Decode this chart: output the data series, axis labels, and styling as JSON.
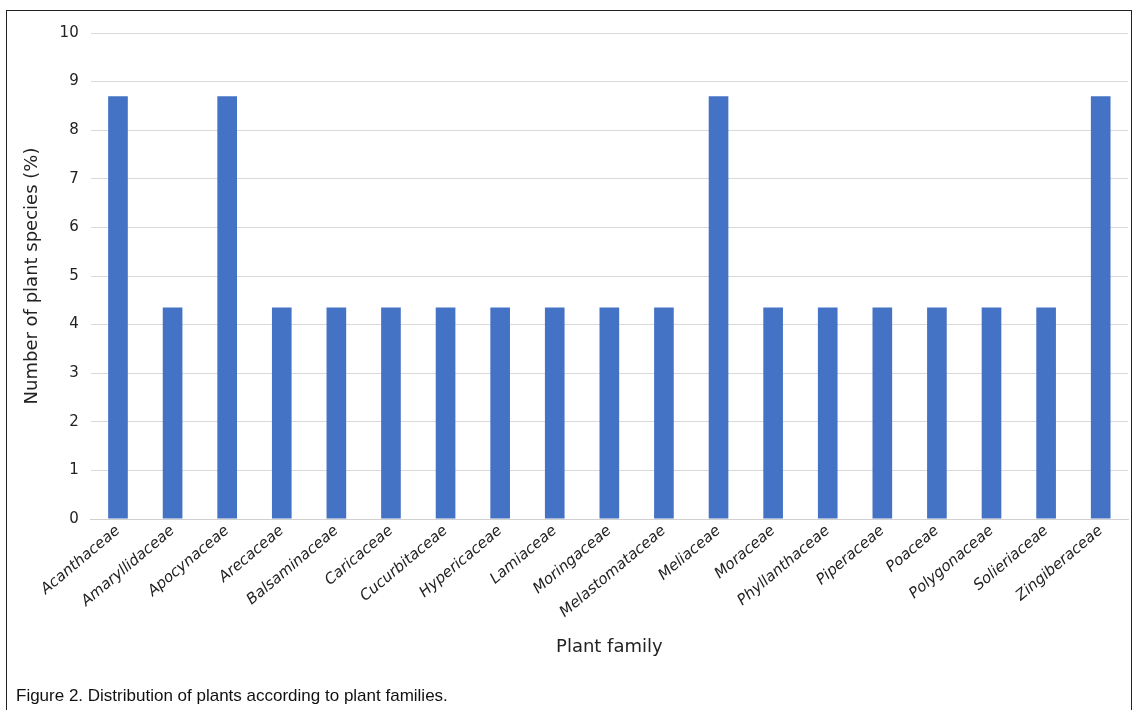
{
  "chart_data": {
    "type": "bar",
    "xlabel": "Plant family",
    "ylabel": "Number of plant species (%)",
    "categories": [
      "Acanthaceae",
      "Amaryllidaceae",
      "Apocynaceae",
      "Arecaceae",
      "Balsaminaceae",
      "Caricaceae",
      "Cucurbitaceae",
      "Hypericaceae",
      "Lamiaceae",
      "Moringaceae",
      "Melastomataceae",
      "Meliaceae",
      "Moraceae",
      "Phyllanthaceae",
      "Piperaceae",
      "Poaceae",
      "Polygonaceae",
      "Solieriaceae",
      "Zingiberaceae"
    ],
    "values": [
      8.7,
      4.35,
      8.7,
      4.35,
      4.35,
      4.35,
      4.35,
      4.35,
      4.35,
      4.35,
      4.35,
      8.7,
      4.35,
      4.35,
      4.35,
      4.35,
      4.35,
      4.35,
      8.7
    ],
    "color": "#4472c4",
    "ylim": [
      0,
      10
    ],
    "yticks": [
      0,
      1,
      2,
      3,
      4,
      5,
      6,
      7,
      8,
      9,
      10
    ],
    "grid": "y",
    "legend": false,
    "annotations": [
      "Figure 2. Distribution of plants according to plant families."
    ]
  }
}
